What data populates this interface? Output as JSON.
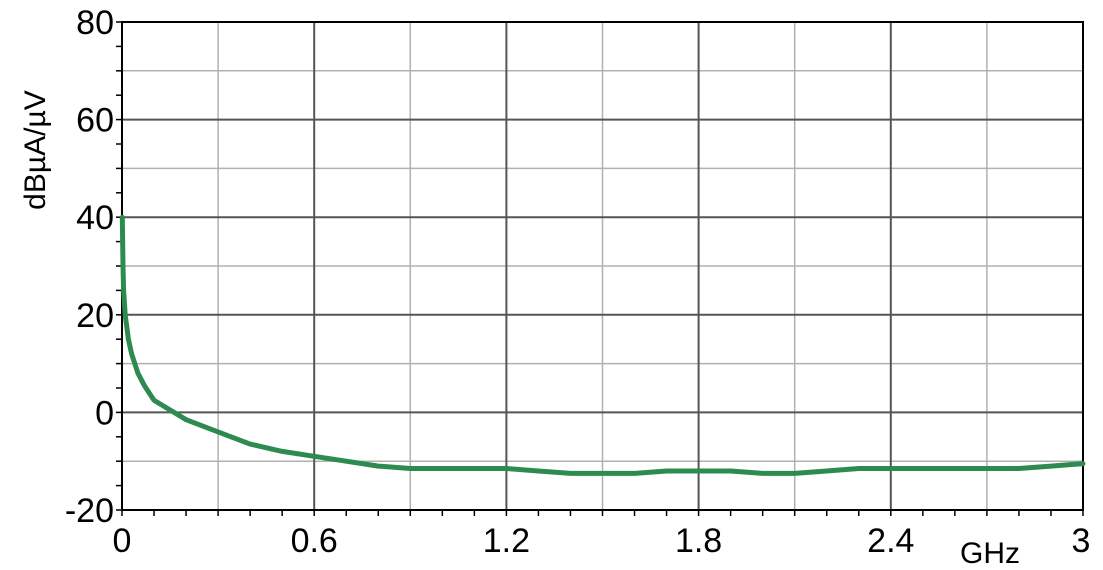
{
  "chart_data": {
    "type": "line",
    "title": "",
    "xlabel": "GHz",
    "ylabel": "dBµA/µV",
    "xlim": [
      0,
      3
    ],
    "ylim": [
      -20,
      80
    ],
    "x_ticks": [
      0,
      0.6,
      1.2,
      1.8,
      2.4,
      3
    ],
    "x_tick_labels": [
      "0",
      "0.6",
      "1.2",
      "1.8",
      "2.4",
      "3"
    ],
    "y_ticks": [
      -20,
      0,
      20,
      40,
      60,
      80
    ],
    "y_tick_labels": [
      "-20",
      "0",
      "20",
      "40",
      "60",
      "80"
    ],
    "grid": true,
    "colors": {
      "series": "#2e8b4f",
      "grid_major": "#555555",
      "grid_minor": "#b0b0b0"
    },
    "series": [
      {
        "x": [
          0.001,
          0.003,
          0.005,
          0.01,
          0.02,
          0.03,
          0.05,
          0.07,
          0.1,
          0.15,
          0.2,
          0.3,
          0.4,
          0.5,
          0.6,
          0.7,
          0.8,
          0.9,
          1.0,
          1.1,
          1.2,
          1.3,
          1.4,
          1.5,
          1.6,
          1.7,
          1.8,
          1.9,
          2.0,
          2.1,
          2.2,
          2.3,
          2.4,
          2.5,
          2.6,
          2.7,
          2.8,
          2.9,
          3.0
        ],
        "y": [
          40,
          30,
          25,
          20,
          15,
          12,
          8,
          5.5,
          2.5,
          0.5,
          -1.5,
          -4,
          -6.5,
          -8,
          -9,
          -10,
          -11,
          -11.5,
          -11.5,
          -11.5,
          -11.5,
          -12,
          -12.5,
          -12.5,
          -12.5,
          -12,
          -12,
          -12,
          -12.5,
          -12.5,
          -12,
          -11.5,
          -11.5,
          -11.5,
          -11.5,
          -11.5,
          -11.5,
          -11,
          -10.5
        ]
      }
    ]
  }
}
